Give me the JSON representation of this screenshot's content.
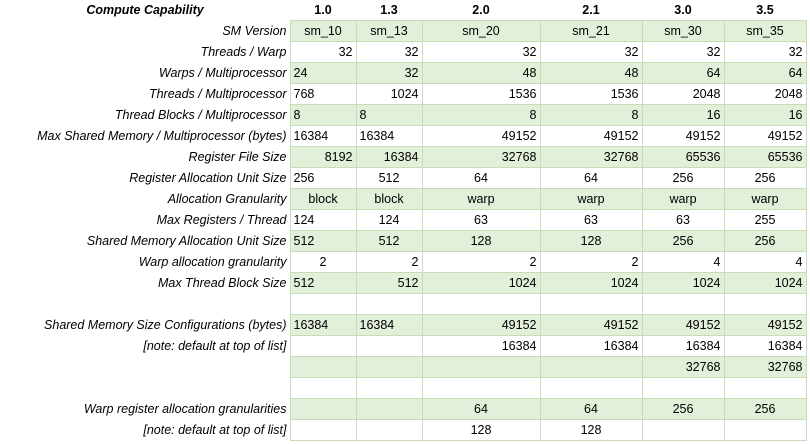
{
  "header": {
    "label": "Compute Capability",
    "columns": [
      "1.0",
      "1.3",
      "2.0",
      "2.1",
      "3.0",
      "3.5"
    ]
  },
  "rows": [
    {
      "label": "SM Version",
      "values": [
        "sm_10",
        "sm_13",
        "sm_20",
        "sm_21",
        "sm_30",
        "sm_35"
      ]
    },
    {
      "label": "Threads / Warp",
      "values": [
        "32",
        "32",
        "32",
        "32",
        "32",
        "32"
      ]
    },
    {
      "label": "Warps / Multiprocessor",
      "values": [
        "24",
        "32",
        "48",
        "48",
        "64",
        "64"
      ]
    },
    {
      "label": "Threads / Multiprocessor",
      "values": [
        "768",
        "1024",
        "1536",
        "1536",
        "2048",
        "2048"
      ]
    },
    {
      "label": "Thread Blocks / Multiprocessor",
      "values": [
        "8",
        "8",
        "8",
        "8",
        "16",
        "16"
      ]
    },
    {
      "label": "Max Shared Memory / Multiprocessor (bytes)",
      "values": [
        "16384",
        "16384",
        "49152",
        "49152",
        "49152",
        "49152"
      ]
    },
    {
      "label": "Register File Size",
      "values": [
        "8192",
        "16384",
        "32768",
        "32768",
        "65536",
        "65536"
      ]
    },
    {
      "label": "Register Allocation Unit Size",
      "values": [
        "256",
        "512",
        "64",
        "64",
        "256",
        "256"
      ]
    },
    {
      "label": "Allocation Granularity",
      "values": [
        "block",
        "block",
        "warp",
        "warp",
        "warp",
        "warp"
      ]
    },
    {
      "label": "Max Registers / Thread",
      "values": [
        "124",
        "124",
        "63",
        "63",
        "63",
        "255"
      ]
    },
    {
      "label": "Shared Memory Allocation Unit Size",
      "values": [
        "512",
        "512",
        "128",
        "128",
        "256",
        "256"
      ]
    },
    {
      "label": "Warp allocation granularity",
      "values": [
        "2",
        "2",
        "2",
        "2",
        "4",
        "4"
      ]
    },
    {
      "label": "Max Thread Block Size",
      "values": [
        "512",
        "512",
        "1024",
        "1024",
        "1024",
        "1024"
      ]
    }
  ],
  "shared_config": [
    {
      "label": "Shared Memory Size Configurations (bytes)",
      "values": [
        "16384",
        "16384",
        "49152",
        "49152",
        "49152",
        "49152"
      ]
    },
    {
      "label": "[note: default at top of list]",
      "values": [
        "",
        "",
        "16384",
        "16384",
        "16384",
        "16384"
      ]
    },
    {
      "label": "",
      "values": [
        "",
        "",
        "",
        "",
        "32768",
        "32768"
      ]
    }
  ],
  "warp_reg": [
    {
      "label": "Warp register allocation granularities",
      "values": [
        "",
        "",
        "64",
        "64",
        "256",
        "256"
      ]
    },
    {
      "label": "[note: default at top of list]",
      "values": [
        "",
        "",
        "128",
        "128",
        "",
        ""
      ]
    }
  ]
}
